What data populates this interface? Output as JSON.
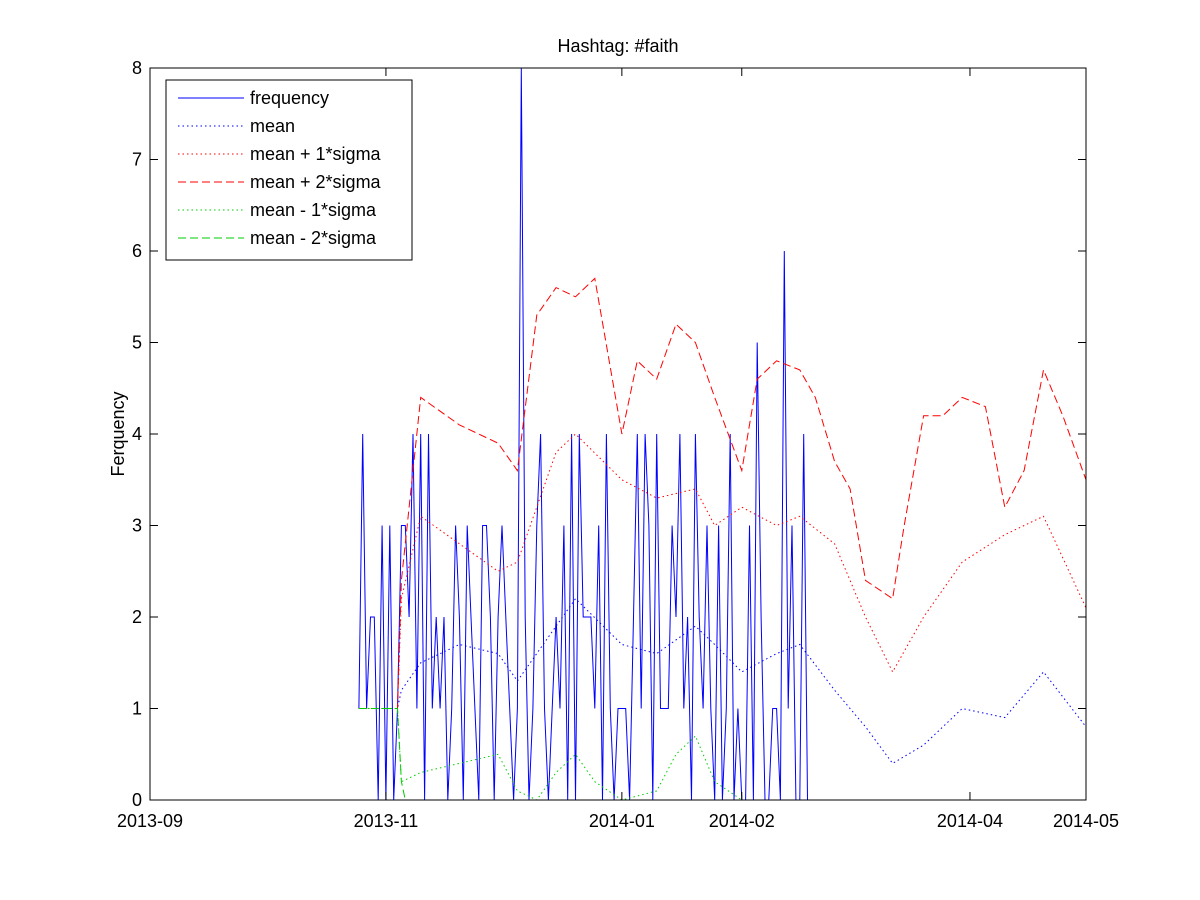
{
  "chart_data": {
    "type": "line",
    "title": "Hashtag: #faith",
    "xlabel": "",
    "ylabel": "Ferquency",
    "ylim": [
      0,
      8
    ],
    "yticks": [
      0,
      1,
      2,
      3,
      4,
      5,
      6,
      7,
      8
    ],
    "xlim": [
      "2013-09-01",
      "2014-05-01"
    ],
    "xticks": [
      "2013-09",
      "2013-11",
      "2014-01",
      "2014-02",
      "2014-04",
      "2014-05"
    ],
    "grid": false,
    "legend_position": "top-left",
    "series": [
      {
        "name": "frequency",
        "color": "#0000ff",
        "style": "solid",
        "x": [
          "2013-10-25",
          "2013-10-26",
          "2013-10-27",
          "2013-10-28",
          "2013-10-29",
          "2013-10-30",
          "2013-10-31",
          "2013-11-01",
          "2013-11-02",
          "2013-11-03",
          "2013-11-04",
          "2013-11-05",
          "2013-11-06",
          "2013-11-07",
          "2013-11-08",
          "2013-11-09",
          "2013-11-10",
          "2013-11-11",
          "2013-11-12",
          "2013-11-13",
          "2013-11-14",
          "2013-11-15",
          "2013-11-16",
          "2013-11-17",
          "2013-11-18",
          "2013-11-19",
          "2013-11-20",
          "2013-11-21",
          "2013-11-22",
          "2013-11-23",
          "2013-11-24",
          "2013-11-25",
          "2013-11-26",
          "2013-11-27",
          "2013-11-28",
          "2013-11-29",
          "2013-11-30",
          "2013-12-01",
          "2013-12-02",
          "2013-12-03",
          "2013-12-04",
          "2013-12-05",
          "2013-12-06",
          "2013-12-07",
          "2013-12-08",
          "2013-12-09",
          "2013-12-10",
          "2013-12-11",
          "2013-12-12",
          "2013-12-13",
          "2013-12-14",
          "2013-12-15",
          "2013-12-16",
          "2013-12-17",
          "2013-12-18",
          "2013-12-19",
          "2013-12-20",
          "2013-12-21",
          "2013-12-22",
          "2013-12-23",
          "2013-12-24",
          "2013-12-25",
          "2013-12-26",
          "2013-12-27",
          "2013-12-28",
          "2013-12-29",
          "2013-12-30",
          "2013-12-31",
          "2014-01-01",
          "2014-01-02",
          "2014-01-03",
          "2014-01-04",
          "2014-01-05",
          "2014-01-06",
          "2014-01-07",
          "2014-01-08",
          "2014-01-09",
          "2014-01-10",
          "2014-01-11",
          "2014-01-12",
          "2014-01-13",
          "2014-01-14",
          "2014-01-15",
          "2014-01-16",
          "2014-01-17",
          "2014-01-18",
          "2014-01-19",
          "2014-01-20",
          "2014-01-21",
          "2014-01-22",
          "2014-01-23",
          "2014-01-24",
          "2014-01-25",
          "2014-01-26",
          "2014-01-27",
          "2014-01-28",
          "2014-01-29",
          "2014-01-30",
          "2014-01-31",
          "2014-02-01",
          "2014-02-02",
          "2014-02-03",
          "2014-02-04",
          "2014-02-05",
          "2014-02-06",
          "2014-02-07",
          "2014-02-08",
          "2014-02-09",
          "2014-02-10",
          "2014-02-11",
          "2014-02-12",
          "2014-02-13",
          "2014-02-14",
          "2014-02-15",
          "2014-02-16",
          "2014-02-17",
          "2014-02-18",
          "2014-02-19",
          "2014-02-20",
          "2014-02-21",
          "2014-02-22",
          "2014-02-23",
          "2014-02-24",
          "2014-02-25",
          "2014-02-26",
          "2014-02-27",
          "2014-02-28",
          "2014-03-01",
          "2014-03-02",
          "2014-03-03",
          "2014-03-04",
          "2014-03-05",
          "2014-03-06",
          "2014-03-07",
          "2014-03-08",
          "2014-03-09",
          "2014-03-10",
          "2014-03-11",
          "2014-03-12",
          "2014-03-13",
          "2014-03-14",
          "2014-03-15",
          "2014-03-16",
          "2014-03-17",
          "2014-03-18",
          "2014-03-19",
          "2014-03-20",
          "2014-03-21",
          "2014-03-22",
          "2014-03-23",
          "2014-03-24",
          "2014-03-25",
          "2014-03-26",
          "2014-03-27",
          "2014-03-28",
          "2014-03-29",
          "2014-03-30",
          "2014-03-31",
          "2014-04-01",
          "2014-04-02",
          "2014-04-03",
          "2014-04-04",
          "2014-04-05",
          "2014-04-06",
          "2014-04-07",
          "2014-04-08",
          "2014-04-09",
          "2014-04-10",
          "2014-04-11",
          "2014-04-12",
          "2014-04-13",
          "2014-04-14",
          "2014-04-15",
          "2014-04-16",
          "2014-04-17",
          "2014-04-18",
          "2014-04-19",
          "2014-04-20",
          "2014-04-21",
          "2014-04-22",
          "2014-04-23",
          "2014-04-24",
          "2014-04-25",
          "2014-04-26",
          "2014-04-27",
          "2014-04-28",
          "2014-04-29",
          "2014-04-30",
          "2014-05-01"
        ],
        "values": [
          1,
          4,
          1,
          2,
          2,
          0,
          3,
          0,
          3,
          0,
          1,
          3,
          3,
          2,
          4,
          1,
          4,
          0,
          4,
          1,
          2,
          1,
          2,
          0,
          1,
          3,
          2,
          0,
          3,
          2,
          1,
          0,
          3,
          3,
          2,
          0,
          2,
          3,
          2,
          1,
          0,
          1,
          8,
          2,
          0,
          1,
          3,
          4,
          1,
          0,
          1,
          2,
          1,
          3,
          0,
          4,
          0,
          4,
          2,
          2,
          2,
          1,
          3,
          0,
          4,
          1,
          0,
          1,
          1,
          1,
          0,
          2,
          4,
          1,
          4,
          3,
          0,
          4,
          1,
          1,
          1,
          3,
          2,
          4,
          1,
          2,
          0,
          4,
          2,
          1,
          3,
          1,
          0,
          3,
          0,
          1,
          4,
          0,
          1,
          0,
          0,
          3,
          0,
          5,
          2,
          0,
          0,
          1,
          1,
          0,
          6,
          1,
          3,
          0,
          0,
          4,
          0,
          0,
          0,
          0,
          0,
          0,
          0,
          0,
          0,
          0,
          0,
          0,
          0,
          0,
          0,
          0,
          0,
          0,
          0,
          0,
          0,
          0,
          0,
          0,
          0,
          0,
          0,
          0,
          0,
          0,
          0,
          0,
          0,
          0,
          0,
          0,
          0,
          0,
          0,
          0,
          0,
          0,
          0,
          0,
          0,
          0,
          0,
          0,
          0,
          0,
          0,
          0,
          0,
          0,
          0,
          0,
          0,
          0,
          0,
          0,
          0,
          0,
          0,
          0,
          0,
          0,
          0,
          0,
          0,
          0,
          0,
          0,
          0
        ]
      },
      {
        "name": "mean",
        "color": "#0000ff",
        "style": "dotted",
        "x": [
          "2013-10-25",
          "2013-11-04",
          "2013-11-05",
          "2013-11-10",
          "2013-11-20",
          "2013-11-30",
          "2013-12-05",
          "2013-12-15",
          "2013-12-20",
          "2014-01-01",
          "2014-01-10",
          "2014-01-20",
          "2014-01-25",
          "2014-02-01",
          "2014-02-10",
          "2014-02-16",
          "2014-02-25",
          "2014-03-05",
          "2014-03-12",
          "2014-03-20",
          "2014-03-30",
          "2014-04-10",
          "2014-04-20",
          "2014-05-01"
        ],
        "values": [
          1,
          1,
          1.2,
          1.5,
          1.7,
          1.6,
          1.3,
          1.9,
          2.2,
          1.7,
          1.6,
          1.9,
          1.7,
          1.4,
          1.6,
          1.7,
          1.2,
          0.8,
          0.4,
          0.6,
          1.0,
          0.9,
          1.4,
          0.8
        ]
      },
      {
        "name": "mean + 1*sigma",
        "color": "#ff0000",
        "style": "dotted",
        "x": [
          "2013-10-25",
          "2013-11-04",
          "2013-11-05",
          "2013-11-10",
          "2013-11-20",
          "2013-11-30",
          "2013-12-05",
          "2013-12-15",
          "2013-12-20",
          "2014-01-01",
          "2014-01-10",
          "2014-01-20",
          "2014-01-25",
          "2014-02-01",
          "2014-02-10",
          "2014-02-16",
          "2014-02-25",
          "2014-03-05",
          "2014-03-12",
          "2014-03-20",
          "2014-03-30",
          "2014-04-10",
          "2014-04-20",
          "2014-05-01"
        ],
        "values": [
          1,
          1,
          2.2,
          3.1,
          2.8,
          2.5,
          2.6,
          3.8,
          4.0,
          3.5,
          3.3,
          3.4,
          3.0,
          3.2,
          3.0,
          3.1,
          2.8,
          2.0,
          1.4,
          2.0,
          2.6,
          2.9,
          3.1,
          2.1
        ]
      },
      {
        "name": "mean + 2*sigma",
        "color": "#ff0000",
        "style": "dashed",
        "x": [
          "2013-10-25",
          "2013-11-04",
          "2013-11-05",
          "2013-11-10",
          "2013-11-20",
          "2013-11-30",
          "2013-12-05",
          "2013-12-10",
          "2013-12-15",
          "2013-12-20",
          "2013-12-25",
          "2014-01-01",
          "2014-01-05",
          "2014-01-10",
          "2014-01-15",
          "2014-01-20",
          "2014-01-25",
          "2014-02-01",
          "2014-02-05",
          "2014-02-10",
          "2014-02-16",
          "2014-02-20",
          "2014-02-25",
          "2014-03-01",
          "2014-03-05",
          "2014-03-12",
          "2014-03-15",
          "2014-03-20",
          "2014-03-25",
          "2014-03-30",
          "2014-04-05",
          "2014-04-10",
          "2014-04-15",
          "2014-04-20",
          "2014-04-25",
          "2014-05-01"
        ],
        "values": [
          1,
          1,
          2.4,
          4.4,
          4.1,
          3.9,
          3.6,
          5.3,
          5.6,
          5.5,
          5.7,
          4.0,
          4.8,
          4.6,
          5.2,
          5.0,
          4.4,
          3.6,
          4.6,
          4.8,
          4.7,
          4.4,
          3.7,
          3.4,
          2.4,
          2.2,
          3.0,
          4.2,
          4.2,
          4.4,
          4.3,
          3.2,
          3.6,
          4.7,
          4.2,
          3.5
        ]
      },
      {
        "name": "mean - 1*sigma",
        "color": "#00cc00",
        "style": "dotted",
        "x": [
          "2013-10-25",
          "2013-11-04",
          "2013-11-05",
          "2013-11-10",
          "2013-11-20",
          "2013-11-30",
          "2013-12-05",
          "2013-12-10",
          "2013-12-15",
          "2013-12-20",
          "2013-12-25",
          "2014-01-01",
          "2014-01-10",
          "2014-01-15",
          "2014-01-20",
          "2014-01-25",
          "2014-02-01"
        ],
        "values": [
          1,
          1,
          0.2,
          0.3,
          0.4,
          0.5,
          0.1,
          0.0,
          0.3,
          0.5,
          0.2,
          0.0,
          0.1,
          0.5,
          0.7,
          0.2,
          0.0
        ]
      },
      {
        "name": "mean - 2*sigma",
        "color": "#00cc00",
        "style": "dashed",
        "x": [
          "2013-10-25",
          "2013-11-04",
          "2013-11-05",
          "2013-11-06"
        ],
        "values": [
          1,
          1,
          0.2,
          0
        ]
      }
    ]
  }
}
